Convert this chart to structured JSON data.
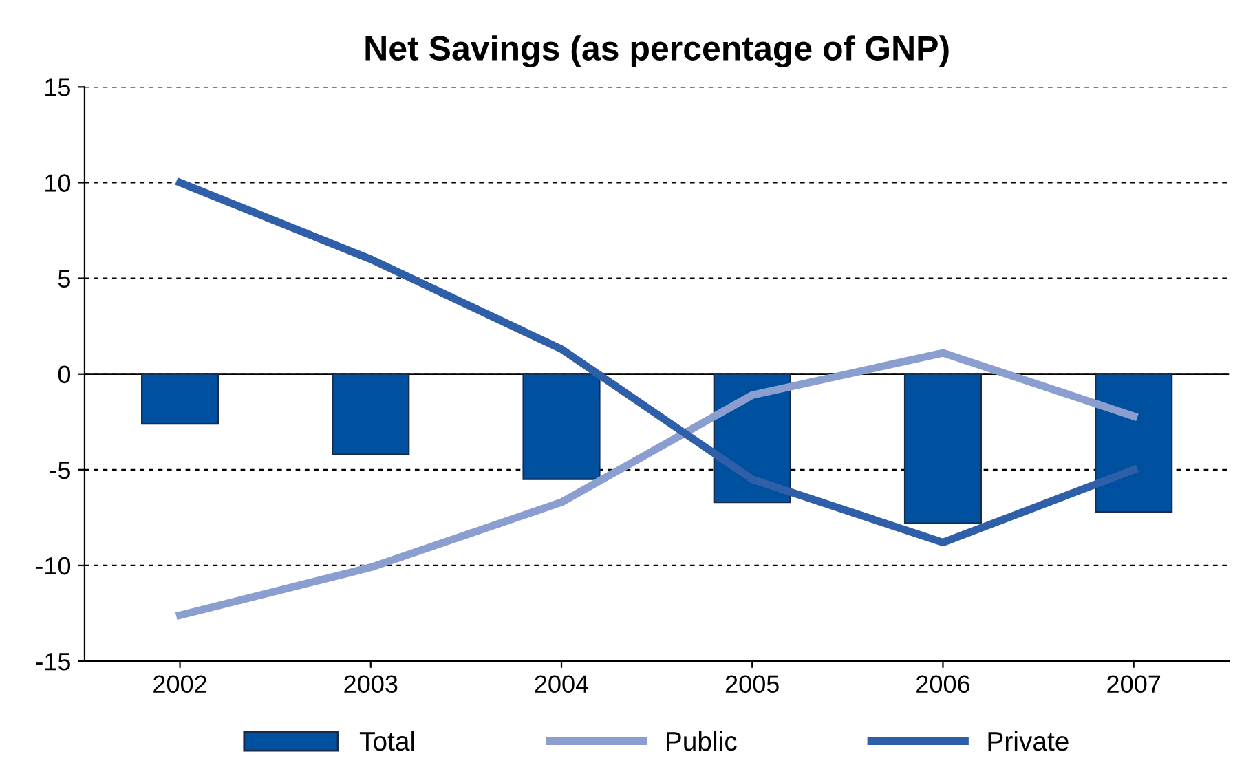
{
  "chart_data": {
    "type": "bar",
    "title": "Net Savings (as percentage of GNP)",
    "categories": [
      "2002",
      "2003",
      "2004",
      "2005",
      "2006",
      "2007"
    ],
    "series": [
      {
        "name": "Total",
        "color": "#0050a0",
        "values": [
          -2.6,
          -4.2,
          -5.5,
          -6.7,
          -7.8,
          -7.2
        ]
      },
      {
        "name": "Public",
        "type": "line",
        "color": "#8a9fd0",
        "values": [
          -12.6,
          -10.1,
          -6.7,
          -1.1,
          1.1,
          -2.2
        ]
      },
      {
        "name": "Private",
        "type": "line",
        "color": "#2f5fa8",
        "values": [
          10.0,
          6.0,
          1.3,
          -5.5,
          -8.8,
          -5.0
        ]
      }
    ],
    "ylim": [
      -15,
      15
    ],
    "yticks": [
      -15,
      -10,
      -5,
      0,
      5,
      10,
      15
    ],
    "ref_lines": [
      {
        "axis": "y",
        "value": 0,
        "color": "#000000",
        "line_style": "solid"
      }
    ],
    "grid": "y",
    "legend": "bottom",
    "marker": "none",
    "line_style": "solid"
  }
}
